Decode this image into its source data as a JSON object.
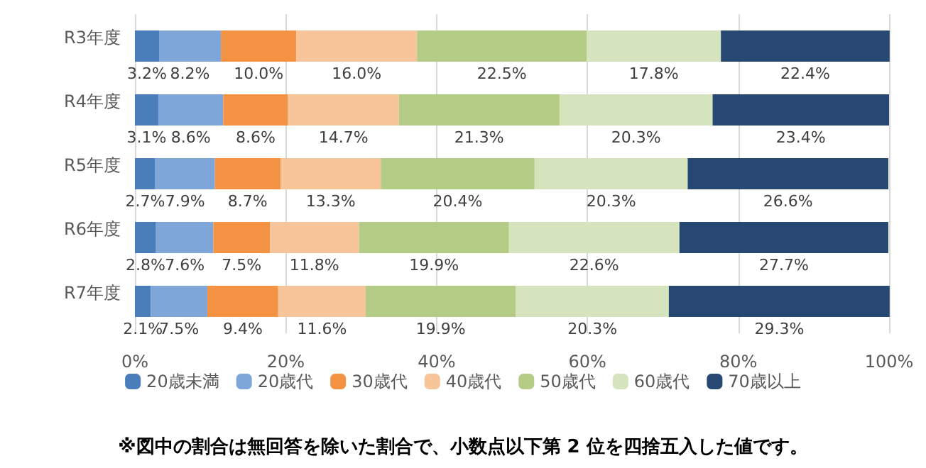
{
  "chart_data": {
    "type": "bar",
    "orientation": "horizontal",
    "stacked": true,
    "categories": [
      "R3年度",
      "R4年度",
      "R5年度",
      "R6年度",
      "R7年度"
    ],
    "series": [
      {
        "name": "20歳未満",
        "color": "#4a7ebb",
        "values": [
          3.2,
          3.1,
          2.7,
          2.8,
          2.1
        ],
        "value_labels": [
          "3.2%",
          "3.1%",
          "2.7%",
          "2.8%",
          "2.1%"
        ]
      },
      {
        "name": "20歳代",
        "color": "#7fa6d9",
        "values": [
          8.2,
          8.6,
          7.9,
          7.6,
          7.5
        ],
        "value_labels": [
          "8.2%",
          "8.6%",
          "7.9%",
          "7.6%",
          "7.5%"
        ]
      },
      {
        "name": "30歳代",
        "color": "#f39343",
        "values": [
          10.0,
          8.6,
          8.7,
          7.5,
          9.4
        ],
        "value_labels": [
          "10.0%",
          "8.6%",
          "8.7%",
          "7.5%",
          "9.4%"
        ]
      },
      {
        "name": "40歳代",
        "color": "#f8c49a",
        "values": [
          16.0,
          14.7,
          13.3,
          11.8,
          11.6
        ],
        "value_labels": [
          "16.0%",
          "14.7%",
          "13.3%",
          "11.8%",
          "11.6%"
        ]
      },
      {
        "name": "50歳代",
        "color": "#b5cc86",
        "values": [
          22.5,
          21.3,
          20.4,
          19.9,
          19.9
        ],
        "value_labels": [
          "22.5%",
          "21.3%",
          "20.4%",
          "19.9%",
          "19.9%"
        ]
      },
      {
        "name": "60歳代",
        "color": "#d6e4bd",
        "values": [
          17.8,
          20.3,
          20.3,
          22.6,
          20.3
        ],
        "value_labels": [
          "17.8%",
          "20.3%",
          "20.3%",
          "22.6%",
          "20.3%"
        ]
      },
      {
        "name": "70歳以上",
        "color": "#264872",
        "values": [
          22.4,
          23.4,
          26.6,
          27.7,
          29.3
        ],
        "value_labels": [
          "22.4%",
          "23.4%",
          "26.6%",
          "27.7%",
          "29.3%"
        ]
      }
    ],
    "xlim": [
      0,
      100
    ],
    "xticks": [
      {
        "value": 0,
        "label": "0%"
      },
      {
        "value": 20,
        "label": "20%"
      },
      {
        "value": 40,
        "label": "40%"
      },
      {
        "value": 60,
        "label": "60%"
      },
      {
        "value": 80,
        "label": "80%"
      },
      {
        "value": 100,
        "label": "100%"
      }
    ],
    "grid": "x",
    "legend": "bottom",
    "annotations": [
      "※図中の割合は無回答を除いた割合で、小数点以下第 2 位を四捨五入した値です。"
    ]
  }
}
